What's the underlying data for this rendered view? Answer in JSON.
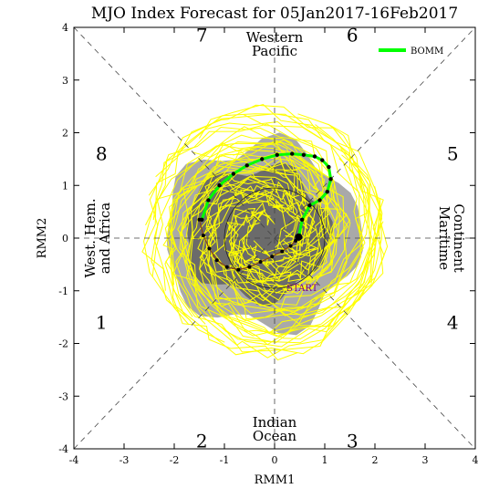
{
  "chart_data": {
    "type": "scatter",
    "title": "MJO Index Forecast for 05Jan2017-16Feb2017",
    "xlabel": "RMM1",
    "ylabel": "RMM2",
    "xlim": [
      -4,
      4
    ],
    "ylim": [
      -4,
      4
    ],
    "xticks": [
      "-4",
      "-3",
      "-2",
      "-1",
      "0",
      "1",
      "2",
      "3",
      "4"
    ],
    "yticks": [
      "-4",
      "-3",
      "-2",
      "-1",
      "0",
      "1",
      "2",
      "3",
      "4"
    ],
    "grid": false,
    "legend": {
      "position": "top-right",
      "entries": [
        "BOMM"
      ]
    },
    "phase_numbers": [
      "1",
      "2",
      "3",
      "4",
      "5",
      "6",
      "7",
      "8"
    ],
    "region_labels": {
      "top": [
        "Western",
        "Pacific"
      ],
      "bottom": [
        "Indian",
        "Ocean"
      ],
      "left": [
        "West. Hem.",
        "and Africa"
      ],
      "right": [
        "Maritime",
        "Continent"
      ]
    },
    "annotations": [
      "START"
    ],
    "colors": {
      "bomm": "#00ff00",
      "ensemble": "#ffff00",
      "shade_outer": "#a9a9a9",
      "shade_inner": "#6b6b6b",
      "observed": "#000000",
      "observed_labels": "#8b4513",
      "start_label": "#800080"
    },
    "series": [
      {
        "name": "BOMM",
        "x": [
          0.48,
          0.55,
          0.7,
          0.9,
          1.05,
          1.12,
          1.08,
          0.95,
          0.8,
          0.58,
          0.35,
          0.05,
          -0.25,
          -0.55,
          -0.82,
          -1.1,
          -1.32,
          -1.45
        ],
        "y": [
          0.02,
          0.35,
          0.62,
          0.72,
          0.88,
          1.12,
          1.35,
          1.48,
          1.55,
          1.58,
          1.6,
          1.58,
          1.5,
          1.38,
          1.22,
          1.0,
          0.72,
          0.35
        ]
      },
      {
        "name": "observed",
        "x": [
          -1.5,
          -1.42,
          -1.3,
          -1.15,
          -0.95,
          -0.72,
          -0.5,
          -0.28,
          -0.05,
          0.15,
          0.32,
          0.42,
          0.48
        ],
        "y": [
          0.35,
          0.05,
          -0.2,
          -0.42,
          -0.55,
          -0.6,
          -0.55,
          -0.45,
          -0.35,
          -0.25,
          -0.15,
          -0.05,
          0.02
        ]
      }
    ]
  }
}
